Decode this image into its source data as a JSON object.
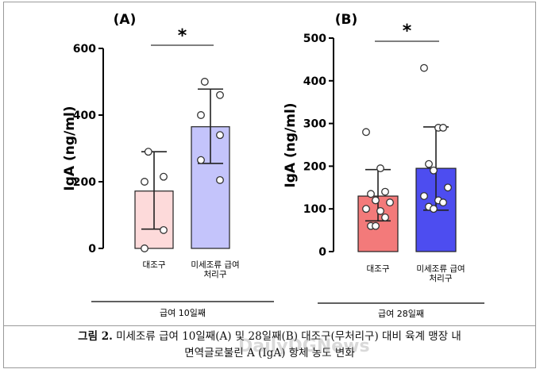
{
  "chart_data": [
    {
      "panel": "(A)",
      "type": "bar",
      "ylabel": "IgA (ng/ml)",
      "ylim": [
        0,
        600
      ],
      "yticks": [
        0,
        200,
        400,
        600
      ],
      "categories": [
        "대조구",
        "미세조류 급여 처리구"
      ],
      "category_lines": [
        [
          "대조구"
        ],
        [
          "미세조류 급여",
          "처리구"
        ]
      ],
      "values": [
        172,
        365
      ],
      "error_low": [
        58,
        255
      ],
      "error_high": [
        290,
        478
      ],
      "points": [
        [
          290,
          215,
          200,
          55,
          0
        ],
        [
          500,
          460,
          400,
          340,
          265,
          205
        ]
      ],
      "significance": "*",
      "group_label": "급여 10일째",
      "colors": {
        "bars": [
          "#fddada",
          "#c4c4fb"
        ]
      }
    },
    {
      "panel": "(B)",
      "type": "bar",
      "ylabel": "IgA (ng/ml)",
      "ylim": [
        0,
        500
      ],
      "yticks": [
        0,
        100,
        200,
        300,
        400,
        500
      ],
      "categories": [
        "대조구",
        "미세조류 급여 처리구"
      ],
      "category_lines": [
        [
          "대조구"
        ],
        [
          "미세조류 급여",
          "처리구"
        ]
      ],
      "values": [
        130,
        195
      ],
      "error_low": [
        72,
        97
      ],
      "error_high": [
        192,
        292
      ],
      "points": [
        [
          280,
          195,
          140,
          135,
          120,
          115,
          100,
          95,
          80,
          60,
          60
        ],
        [
          430,
          290,
          290,
          205,
          190,
          150,
          130,
          120,
          115,
          105,
          100
        ]
      ],
      "significance": "*",
      "group_label": "급여 28일째",
      "colors": {
        "bars": [
          "#f37a7a",
          "#4d4df0"
        ]
      }
    }
  ],
  "caption": {
    "label": "그림 2.",
    "line1": "미세조류 급여 10일째(A) 및 28일째(B) 대조구(무처리구) 대비 육계 맹장 내",
    "line2": "면역글로불린 A (IgA) 항체 농도 변화"
  },
  "watermark": "DailyDGNews"
}
